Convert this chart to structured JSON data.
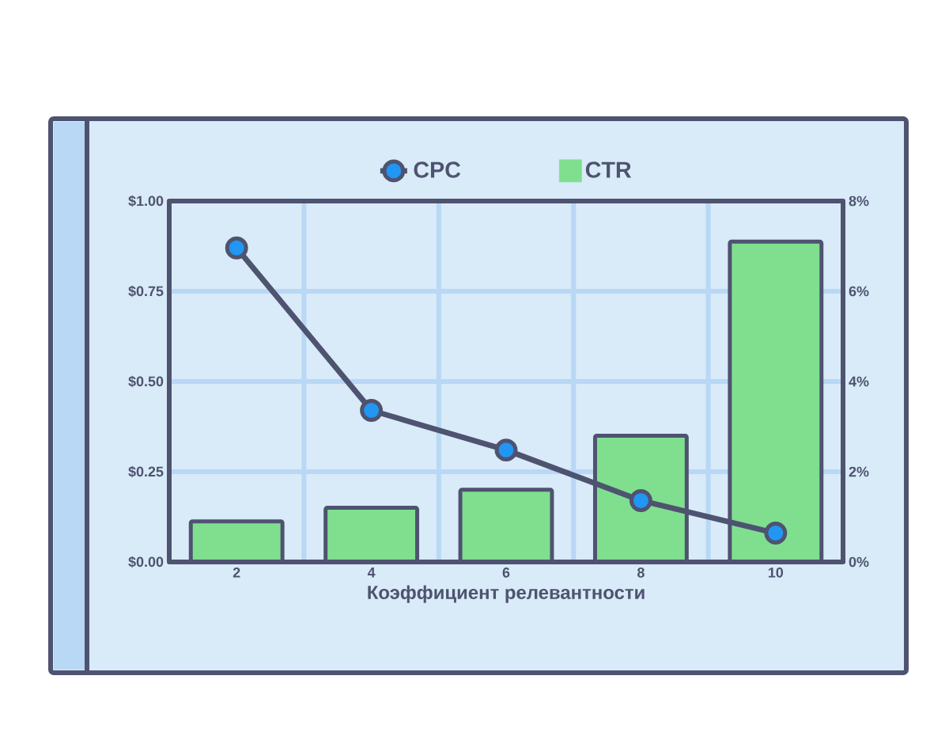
{
  "chart_data": {
    "type": "bar",
    "xlabel": "Коэффициент релевантности",
    "categories": [
      "2",
      "4",
      "6",
      "8",
      "10"
    ],
    "series": [
      {
        "name": "CPC",
        "type": "line",
        "axis": "y",
        "color": "#2196f3",
        "values": [
          0.87,
          0.42,
          0.31,
          0.17,
          0.08
        ]
      },
      {
        "name": "CTR",
        "axis": "y2",
        "color": "#7fdf8f",
        "values": [
          0.9,
          1.2,
          1.6,
          2.8,
          7.1
        ]
      }
    ],
    "ylim": [
      0,
      1
    ],
    "yticks": [
      {
        "value": 0,
        "label": "$0.00"
      },
      {
        "value": 0.25,
        "label": "$0.25"
      },
      {
        "value": 0.5,
        "label": "$0.50"
      },
      {
        "value": 0.75,
        "label": "$0.75"
      },
      {
        "value": 1,
        "label": "$1.00"
      }
    ],
    "y2lim": [
      0,
      8
    ],
    "y2ticks": [
      {
        "value": 0,
        "label": "0%"
      },
      {
        "value": 2,
        "label": "2%"
      },
      {
        "value": 4,
        "label": "4%"
      },
      {
        "value": 6,
        "label": "6%"
      },
      {
        "value": 8,
        "label": "8%"
      }
    ],
    "grid": true,
    "legend": "top",
    "marker": "circle",
    "line_style": "solid"
  }
}
